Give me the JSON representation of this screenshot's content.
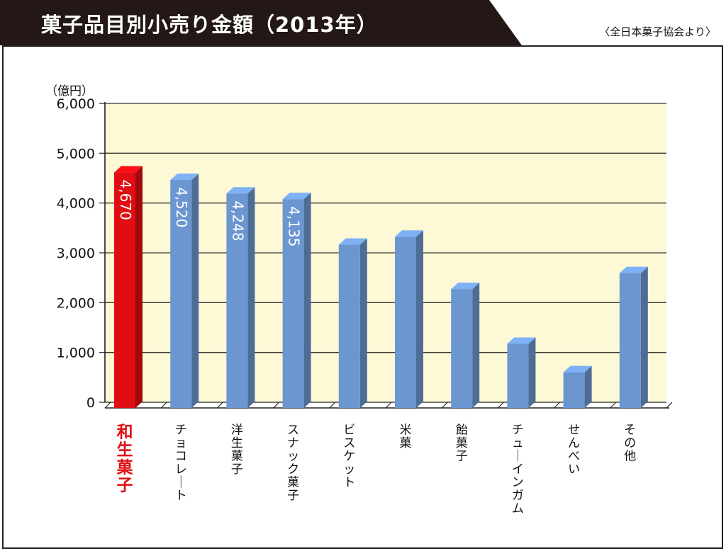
{
  "header": {
    "title": "菓子品目別小売り金額（2013年）",
    "source": "〈全日本菓子協会より〉"
  },
  "colors": {
    "plot_bg": "#fdf8d6",
    "bar_default": "#6b96d0",
    "bar_highlight": "#e00d12",
    "label_highlight": "#e00d12",
    "title_bg": "#231815"
  },
  "chart_data": {
    "type": "bar",
    "title": "菓子品目別小売り金額（2013年）",
    "unit_label": "（億円）",
    "categories": [
      "和生菓子",
      "チョコレート",
      "洋生菓子",
      "スナック菓子",
      "ビスケット",
      "米菓",
      "飴菓子",
      "チューインガム",
      "せんべい",
      "その他"
    ],
    "values": [
      4670,
      4520,
      4248,
      4135,
      3220,
      3380,
      2330,
      1230,
      660,
      2650
    ],
    "data_labels": [
      "4,670",
      "4,520",
      "4,248",
      "4,135",
      "",
      "",
      "",
      "",
      "",
      ""
    ],
    "highlight_index": 0,
    "ylim": [
      0,
      6000
    ],
    "yticks": [
      0,
      1000,
      2000,
      3000,
      4000,
      5000,
      6000
    ],
    "ytick_labels": [
      "0",
      "1,000",
      "2,000",
      "3,000",
      "4,000",
      "5,000",
      "6,000"
    ],
    "grid": true,
    "legend": "none"
  }
}
